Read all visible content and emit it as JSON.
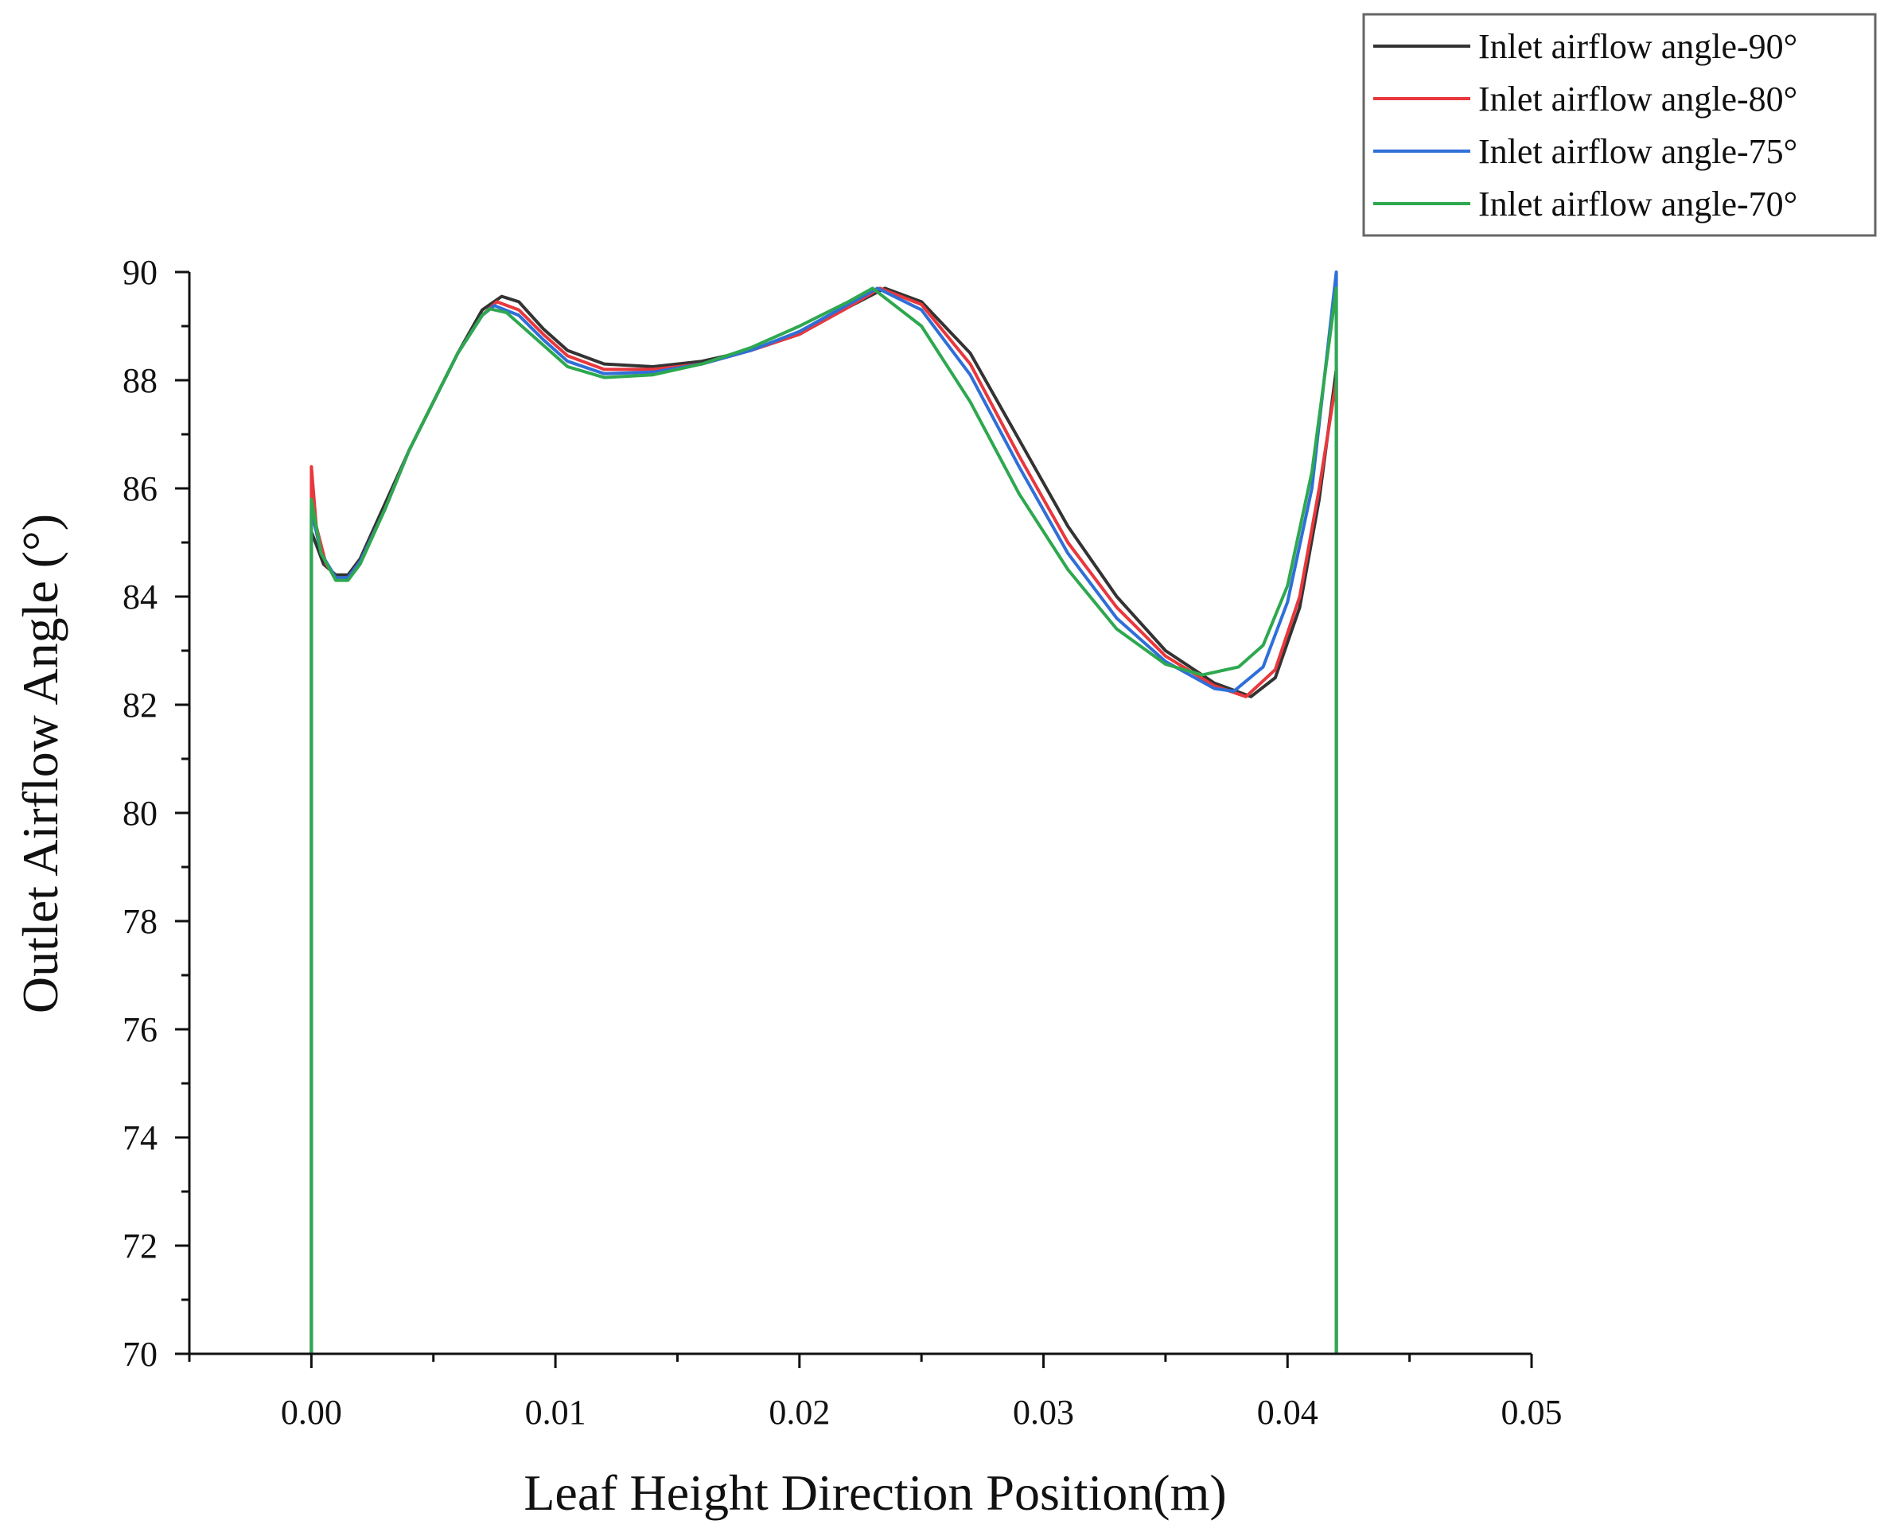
{
  "chart_data": {
    "type": "line",
    "title": "",
    "xlabel": "Leaf Height Direction Position(m)",
    "ylabel": "Outlet Airflow Angle (°)",
    "xlim": [
      -0.005,
      0.05
    ],
    "ylim": [
      70,
      90
    ],
    "xticks": [
      0.0,
      0.01,
      0.02,
      0.03,
      0.04,
      0.05
    ],
    "xtick_labels": [
      "0.00",
      "0.01",
      "0.02",
      "0.03",
      "0.04",
      "0.05"
    ],
    "yticks": [
      70,
      72,
      74,
      76,
      78,
      80,
      82,
      84,
      86,
      88,
      90
    ],
    "ytick_labels": [
      "70",
      "72",
      "74",
      "76",
      "78",
      "80",
      "82",
      "84",
      "86",
      "88",
      "90"
    ],
    "grid": false,
    "legend_position": "top-right",
    "series": [
      {
        "name": "Inlet airflow angle-90°",
        "color": "#333333",
        "points": [
          [
            0.0,
            70
          ],
          [
            0.0,
            85.2
          ],
          [
            0.0005,
            84.6
          ],
          [
            0.001,
            84.4
          ],
          [
            0.0015,
            84.4
          ],
          [
            0.002,
            84.7
          ],
          [
            0.003,
            85.7
          ],
          [
            0.004,
            86.7
          ],
          [
            0.005,
            87.6
          ],
          [
            0.006,
            88.5
          ],
          [
            0.007,
            89.3
          ],
          [
            0.0078,
            89.55
          ],
          [
            0.0085,
            89.45
          ],
          [
            0.0095,
            88.95
          ],
          [
            0.0105,
            88.55
          ],
          [
            0.012,
            88.3
          ],
          [
            0.014,
            88.25
          ],
          [
            0.016,
            88.35
          ],
          [
            0.018,
            88.55
          ],
          [
            0.02,
            88.85
          ],
          [
            0.022,
            89.35
          ],
          [
            0.0235,
            89.7
          ],
          [
            0.025,
            89.45
          ],
          [
            0.027,
            88.5
          ],
          [
            0.029,
            86.9
          ],
          [
            0.031,
            85.3
          ],
          [
            0.033,
            84.0
          ],
          [
            0.035,
            83.0
          ],
          [
            0.037,
            82.4
          ],
          [
            0.0385,
            82.15
          ],
          [
            0.0395,
            82.5
          ],
          [
            0.0405,
            83.8
          ],
          [
            0.0413,
            85.8
          ],
          [
            0.042,
            88.2
          ],
          [
            0.042,
            70
          ]
        ]
      },
      {
        "name": "Inlet airflow angle-80°",
        "color": "#e8383d",
        "points": [
          [
            0.0,
            70
          ],
          [
            0.0,
            86.4
          ],
          [
            0.0002,
            85.3
          ],
          [
            0.0006,
            84.6
          ],
          [
            0.001,
            84.35
          ],
          [
            0.0015,
            84.35
          ],
          [
            0.002,
            84.65
          ],
          [
            0.003,
            85.6
          ],
          [
            0.004,
            86.7
          ],
          [
            0.005,
            87.6
          ],
          [
            0.006,
            88.5
          ],
          [
            0.007,
            89.2
          ],
          [
            0.0076,
            89.45
          ],
          [
            0.0085,
            89.3
          ],
          [
            0.0095,
            88.85
          ],
          [
            0.0105,
            88.45
          ],
          [
            0.012,
            88.2
          ],
          [
            0.014,
            88.2
          ],
          [
            0.016,
            88.3
          ],
          [
            0.018,
            88.55
          ],
          [
            0.02,
            88.85
          ],
          [
            0.022,
            89.35
          ],
          [
            0.0233,
            89.7
          ],
          [
            0.025,
            89.4
          ],
          [
            0.027,
            88.3
          ],
          [
            0.029,
            86.6
          ],
          [
            0.031,
            85.0
          ],
          [
            0.033,
            83.8
          ],
          [
            0.035,
            82.9
          ],
          [
            0.037,
            82.35
          ],
          [
            0.0383,
            82.15
          ],
          [
            0.0395,
            82.65
          ],
          [
            0.0405,
            84.0
          ],
          [
            0.0413,
            86.0
          ],
          [
            0.042,
            88.0
          ],
          [
            0.042,
            70
          ]
        ]
      },
      {
        "name": "Inlet airflow angle-75°",
        "color": "#2f6fd8",
        "points": [
          [
            0.0,
            70
          ],
          [
            0.0,
            85.6
          ],
          [
            0.0004,
            84.8
          ],
          [
            0.001,
            84.35
          ],
          [
            0.0015,
            84.35
          ],
          [
            0.002,
            84.65
          ],
          [
            0.003,
            85.6
          ],
          [
            0.004,
            86.7
          ],
          [
            0.005,
            87.6
          ],
          [
            0.006,
            88.5
          ],
          [
            0.007,
            89.2
          ],
          [
            0.0075,
            89.38
          ],
          [
            0.0085,
            89.2
          ],
          [
            0.0095,
            88.75
          ],
          [
            0.0105,
            88.35
          ],
          [
            0.012,
            88.12
          ],
          [
            0.014,
            88.15
          ],
          [
            0.016,
            88.3
          ],
          [
            0.018,
            88.55
          ],
          [
            0.02,
            88.9
          ],
          [
            0.022,
            89.4
          ],
          [
            0.0232,
            89.7
          ],
          [
            0.025,
            89.3
          ],
          [
            0.027,
            88.1
          ],
          [
            0.029,
            86.4
          ],
          [
            0.031,
            84.8
          ],
          [
            0.033,
            83.6
          ],
          [
            0.035,
            82.8
          ],
          [
            0.037,
            82.3
          ],
          [
            0.0378,
            82.25
          ],
          [
            0.039,
            82.7
          ],
          [
            0.04,
            83.9
          ],
          [
            0.041,
            86.0
          ],
          [
            0.042,
            90.0
          ],
          [
            0.042,
            70
          ]
        ]
      },
      {
        "name": "Inlet airflow angle-70°",
        "color": "#2ea84f",
        "points": [
          [
            0.0,
            70
          ],
          [
            0.0,
            85.8
          ],
          [
            0.0004,
            84.8
          ],
          [
            0.001,
            84.3
          ],
          [
            0.0015,
            84.3
          ],
          [
            0.002,
            84.6
          ],
          [
            0.003,
            85.6
          ],
          [
            0.004,
            86.7
          ],
          [
            0.005,
            87.6
          ],
          [
            0.006,
            88.5
          ],
          [
            0.007,
            89.2
          ],
          [
            0.0073,
            89.32
          ],
          [
            0.008,
            89.25
          ],
          [
            0.009,
            88.85
          ],
          [
            0.0105,
            88.25
          ],
          [
            0.012,
            88.05
          ],
          [
            0.014,
            88.1
          ],
          [
            0.016,
            88.3
          ],
          [
            0.018,
            88.6
          ],
          [
            0.02,
            89.0
          ],
          [
            0.022,
            89.45
          ],
          [
            0.023,
            89.7
          ],
          [
            0.025,
            89.0
          ],
          [
            0.027,
            87.6
          ],
          [
            0.029,
            85.9
          ],
          [
            0.031,
            84.5
          ],
          [
            0.033,
            83.4
          ],
          [
            0.035,
            82.75
          ],
          [
            0.0365,
            82.55
          ],
          [
            0.038,
            82.7
          ],
          [
            0.039,
            83.1
          ],
          [
            0.04,
            84.2
          ],
          [
            0.041,
            86.3
          ],
          [
            0.042,
            89.7
          ],
          [
            0.042,
            70
          ]
        ]
      }
    ]
  }
}
